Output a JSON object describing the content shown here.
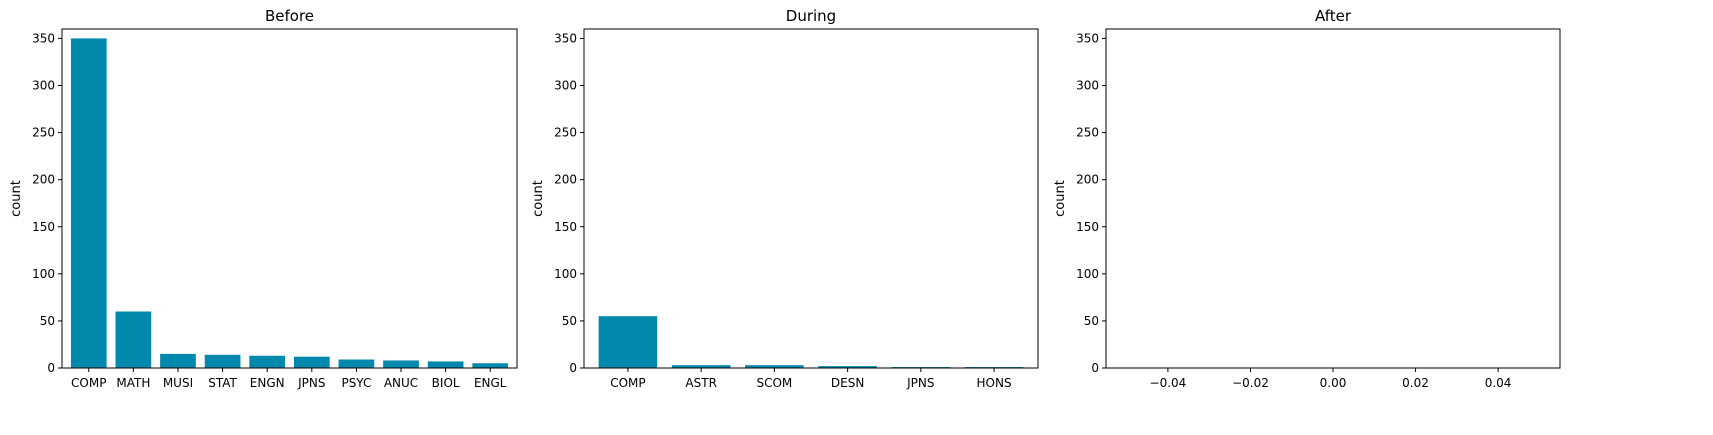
{
  "chart_data": [
    {
      "type": "bar",
      "title": "Before",
      "xlabel": "",
      "ylabel": "count",
      "categories": [
        "COMP",
        "MATH",
        "MUSI",
        "STAT",
        "ENGN",
        "JPNS",
        "PSYC",
        "ANUC",
        "BIOL",
        "ENGL"
      ],
      "values": [
        350,
        60,
        15,
        14,
        13,
        12,
        9,
        8,
        7,
        5
      ],
      "ylim": [
        0,
        360
      ],
      "yticks": [
        0,
        50,
        100,
        150,
        200,
        250,
        300,
        350
      ],
      "color": "#0088ad",
      "grid": false
    },
    {
      "type": "bar",
      "title": "During",
      "xlabel": "",
      "ylabel": "count",
      "categories": [
        "COMP",
        "ASTR",
        "SCOM",
        "DESN",
        "JPNS",
        "HONS"
      ],
      "values": [
        55,
        3,
        3,
        2,
        1,
        1
      ],
      "ylim": [
        0,
        360
      ],
      "yticks": [
        0,
        50,
        100,
        150,
        200,
        250,
        300,
        350
      ],
      "color": "#0088ad",
      "grid": false
    },
    {
      "type": "bar",
      "title": "After",
      "xlabel": "",
      "ylabel": "count",
      "categories": [],
      "values": [],
      "xlim": [
        -0.055,
        0.055
      ],
      "xticks": [
        "−0.04",
        "−0.02",
        "0.00",
        "0.02",
        "0.04"
      ],
      "xtick_values": [
        -0.04,
        -0.02,
        0.0,
        0.02,
        0.04
      ],
      "ylim": [
        0,
        360
      ],
      "yticks": [
        0,
        50,
        100,
        150,
        200,
        250,
        300,
        350
      ],
      "color": "#0088ad",
      "grid": false
    }
  ]
}
